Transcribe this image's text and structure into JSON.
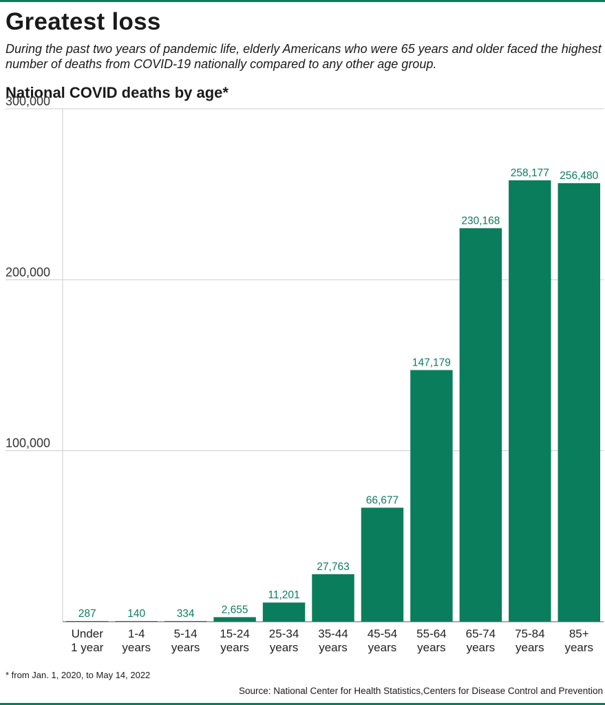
{
  "header": {
    "title": "Greatest loss",
    "subtitle": "During the past two years of pandemic life, elderly Americans who were 65 years and older faced the highest number of deaths from COVID-19 nationally compared to any other age group."
  },
  "chart_data": {
    "type": "bar",
    "title": "National COVID deaths by age*",
    "categories": [
      [
        "Under",
        "1 year"
      ],
      [
        "1-4",
        "years"
      ],
      [
        "5-14",
        "years"
      ],
      [
        "15-24",
        "years"
      ],
      [
        "25-34",
        "years"
      ],
      [
        "35-44",
        "years"
      ],
      [
        "45-54",
        "years"
      ],
      [
        "55-64",
        "years"
      ],
      [
        "65-74",
        "years"
      ],
      [
        "75-84",
        "years"
      ],
      [
        "85+",
        "years"
      ]
    ],
    "values": [
      287,
      140,
      334,
      2655,
      11201,
      27763,
      66677,
      147179,
      230168,
      258177,
      256480
    ],
    "data_labels": [
      "287",
      "140",
      "334",
      "2,655",
      "11,201",
      "27,763",
      "66,677",
      "147,179",
      "230,168",
      "258,177",
      "256,480"
    ],
    "ylim": [
      0,
      300000
    ],
    "yticks": [
      100000,
      200000,
      300000
    ],
    "ytick_labels": [
      "100,000",
      "200,000",
      "300,000"
    ],
    "xlabel": "",
    "ylabel": "",
    "grid": true,
    "legend": "none",
    "bar_color": "#0a7d5c"
  },
  "footer": {
    "footnote": "* from Jan. 1, 2020, to May 14, 2022",
    "source": "Source: National Center for Health Statistics,Centers for Disease Control and Prevention"
  },
  "colors": {
    "accent": "#0a7d5c",
    "grid": "#cccccc"
  }
}
